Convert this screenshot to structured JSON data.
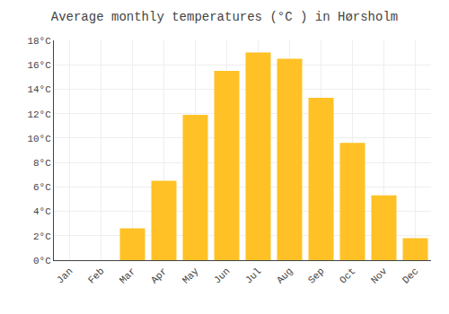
{
  "chart_data": {
    "type": "bar",
    "title": "Average monthly temperatures (°C ) in Hørsholm",
    "categories": [
      "Jan",
      "Feb",
      "Mar",
      "Apr",
      "May",
      "Jun",
      "Jul",
      "Aug",
      "Sep",
      "Oct",
      "Nov",
      "Dec"
    ],
    "values": [
      0,
      0,
      2.6,
      6.5,
      11.9,
      15.5,
      17.0,
      16.5,
      13.3,
      9.6,
      5.3,
      1.8
    ],
    "color": "#FFC125",
    "ylim": [
      0,
      18
    ],
    "yticks": [
      {
        "value": 0,
        "label": "0°C"
      },
      {
        "value": 2,
        "label": "2°C"
      },
      {
        "value": 4,
        "label": "4°C"
      },
      {
        "value": 6,
        "label": "6°C"
      },
      {
        "value": 8,
        "label": "8°C"
      },
      {
        "value": 10,
        "label": "10°C"
      },
      {
        "value": 12,
        "label": "12°C"
      },
      {
        "value": 14,
        "label": "14°C"
      },
      {
        "value": 16,
        "label": "16°C"
      },
      {
        "value": 18,
        "label": "18°C"
      }
    ],
    "grid": true
  }
}
